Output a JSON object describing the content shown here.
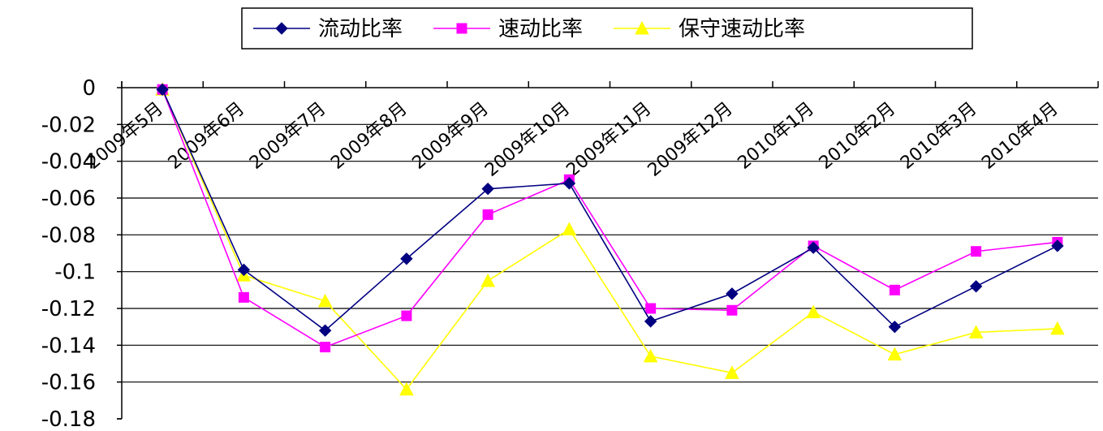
{
  "chart_data": {
    "type": "line",
    "categories": [
      "2009年5月",
      "2009年6月",
      "2009年7月",
      "2009年8月",
      "2009年9月",
      "2009年10月",
      "2009年11月",
      "2009年12月",
      "2010年1月",
      "2010年2月",
      "2010年3月",
      "2010年4月"
    ],
    "series": [
      {
        "name": "流动比率",
        "color": "#000080",
        "marker": "diamond",
        "values": [
          -0.001,
          -0.099,
          -0.132,
          -0.093,
          -0.055,
          -0.052,
          -0.127,
          -0.112,
          -0.087,
          -0.13,
          -0.108,
          -0.086
        ]
      },
      {
        "name": "速动比率",
        "color": "#ff00ff",
        "marker": "square",
        "values": [
          -0.001,
          -0.114,
          -0.141,
          -0.124,
          -0.069,
          -0.05,
          -0.12,
          -0.121,
          -0.086,
          -0.11,
          -0.089,
          -0.084
        ]
      },
      {
        "name": "保守速动比率",
        "color": "#ffff00",
        "marker": "triangle",
        "values": [
          -0.001,
          -0.102,
          -0.116,
          -0.164,
          -0.105,
          -0.077,
          -0.146,
          -0.155,
          -0.122,
          -0.145,
          -0.133,
          -0.131
        ]
      }
    ],
    "ylim": [
      -0.18,
      0
    ],
    "yticks": [
      "0",
      "-0.02",
      "-0.04",
      "-0.06",
      "-0.08",
      "-0.1",
      "-0.12",
      "-0.14",
      "-0.16",
      "-0.18"
    ],
    "legend_position": "top-center",
    "grid": true
  }
}
